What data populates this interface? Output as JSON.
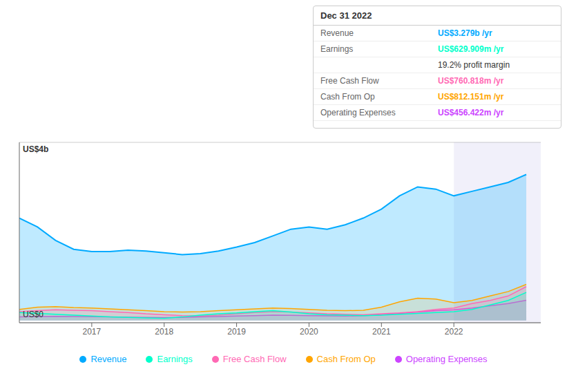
{
  "chart_data": {
    "type": "area",
    "x": [
      2016.0,
      2016.25,
      2016.5,
      2016.75,
      2017.0,
      2017.25,
      2017.5,
      2017.75,
      2018.0,
      2018.25,
      2018.5,
      2018.75,
      2019.0,
      2019.25,
      2019.5,
      2019.75,
      2020.0,
      2020.25,
      2020.5,
      2020.75,
      2021.0,
      2021.25,
      2021.5,
      2021.75,
      2022.0,
      2022.25,
      2022.5,
      2022.75,
      2023.0
    ],
    "series": [
      {
        "name": "Revenue",
        "color": "#00aaff",
        "values": [
          2300,
          2100,
          1800,
          1600,
          1550,
          1550,
          1580,
          1560,
          1520,
          1480,
          1500,
          1560,
          1650,
          1750,
          1900,
          2050,
          2100,
          2050,
          2150,
          2300,
          2500,
          2800,
          3000,
          2950,
          2800,
          2900,
          3000,
          3100,
          3279
        ]
      },
      {
        "name": "Earnings",
        "color": "#00ffcc",
        "values": [
          180,
          160,
          140,
          120,
          100,
          80,
          70,
          60,
          50,
          80,
          120,
          150,
          170,
          200,
          220,
          190,
          150,
          130,
          120,
          110,
          120,
          140,
          160,
          180,
          200,
          250,
          350,
          450,
          630
        ]
      },
      {
        "name": "Free Cash Flow",
        "color": "#ff69b4",
        "values": [
          200,
          220,
          240,
          230,
          220,
          200,
          180,
          150,
          130,
          110,
          100,
          120,
          150,
          180,
          200,
          190,
          170,
          150,
          140,
          130,
          150,
          170,
          200,
          250,
          280,
          380,
          450,
          550,
          761
        ]
      },
      {
        "name": "Cash From Op",
        "color": "#ffa500",
        "values": [
          250,
          300,
          310,
          290,
          280,
          260,
          240,
          220,
          200,
          190,
          200,
          220,
          240,
          260,
          280,
          270,
          250,
          230,
          220,
          230,
          300,
          420,
          500,
          480,
          400,
          450,
          550,
          650,
          812
        ]
      },
      {
        "name": "Operating Expenses",
        "color": "#cc44ff",
        "values": [
          80,
          90,
          95,
          90,
          85,
          80,
          75,
          70,
          65,
          70,
          80,
          90,
          100,
          110,
          120,
          115,
          110,
          105,
          100,
          110,
          130,
          160,
          190,
          220,
          240,
          280,
          330,
          380,
          456
        ]
      }
    ],
    "xlim": [
      2016.0,
      2023.2
    ],
    "ylim": [
      -50,
      4000
    ],
    "xticks": [
      2017,
      2018,
      2019,
      2020,
      2021,
      2022
    ],
    "yticks": [
      0,
      1000,
      2000,
      3000,
      4000
    ],
    "grid": true,
    "tick_labels": "x",
    "legend": "bottom",
    "highlight": [
      2022.0,
      2023.2
    ],
    "annotations": [
      {
        "text": "US$4b",
        "y": 4000
      },
      {
        "text": "US$0",
        "y": 0
      },
      {
        "title": "Dec 31 2022",
        "rows": [
          {
            "label": "Revenue",
            "value": "US$3.279b /yr"
          },
          {
            "label": "Earnings",
            "value": "US$629.909m /yr"
          },
          {
            "value": "19.2% profit margin"
          },
          {
            "label": "Free Cash Flow",
            "value": "US$760.818m /yr"
          },
          {
            "label": "Cash From Op",
            "value": "US$812.151m /yr"
          },
          {
            "label": "Operating Expenses",
            "value": "US$456.422m /yr"
          }
        ]
      }
    ]
  }
}
